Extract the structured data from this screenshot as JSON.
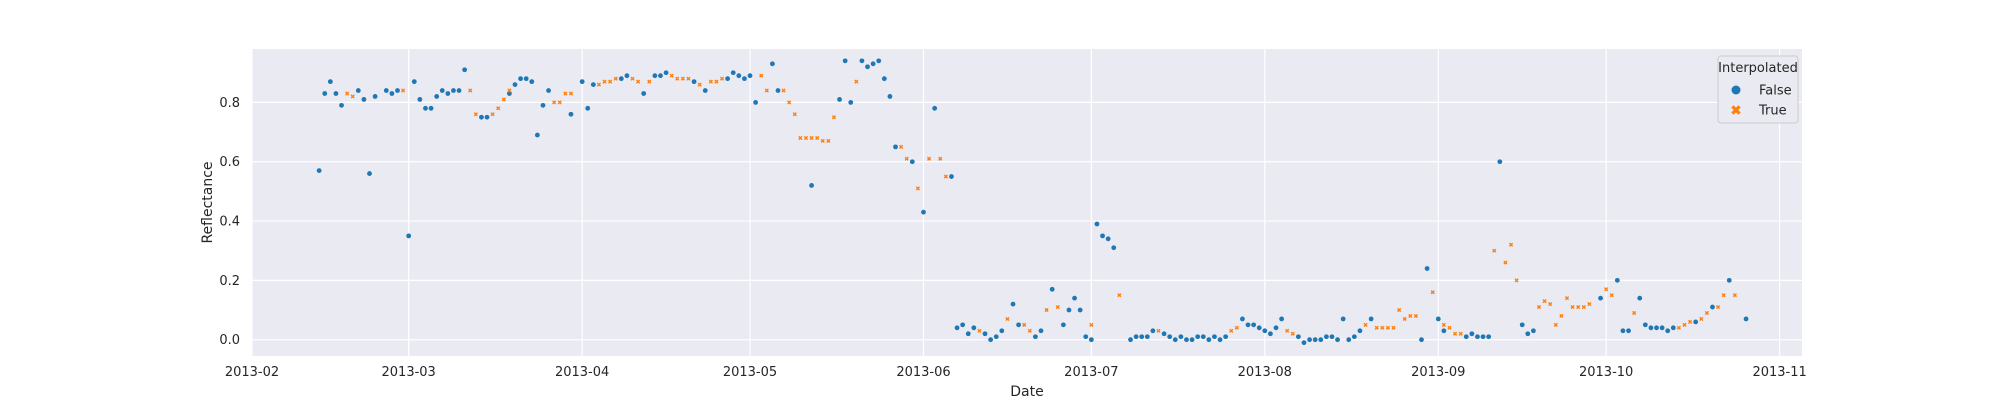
{
  "chart_data": {
    "type": "scatter",
    "xlabel": "Date",
    "ylabel": "Reflectance",
    "xlim": [
      "2013-02-01",
      "2013-11-05"
    ],
    "ylim": [
      -0.055,
      0.98
    ],
    "x_ticks": [
      "2013-02",
      "2013-03",
      "2013-04",
      "2013-05",
      "2013-06",
      "2013-07",
      "2013-08",
      "2013-09",
      "2013-10",
      "2013-11"
    ],
    "x_tick_dates": [
      "2013-02-01",
      "2013-03-01",
      "2013-04-01",
      "2013-05-01",
      "2013-06-01",
      "2013-07-01",
      "2013-08-01",
      "2013-09-01",
      "2013-10-01",
      "2013-11-01"
    ],
    "y_ticks": [
      0.0,
      0.2,
      0.4,
      0.6,
      0.8
    ],
    "y_tick_labels": [
      "0.0",
      "0.2",
      "0.4",
      "0.6",
      "0.8"
    ],
    "grid": true,
    "background": "#eaeaf2",
    "legend": {
      "title": "Interpolated",
      "placement": "top-right",
      "entries": [
        {
          "label": "False",
          "marker": "circle",
          "color": "#1f77b4"
        },
        {
          "label": "True",
          "marker": "x",
          "color": "#ff7f0e"
        }
      ]
    },
    "series": [
      {
        "name": "False",
        "color": "#1f77b4",
        "points": [
          [
            "2013-02-13",
            0.57
          ],
          [
            "2013-02-14",
            0.83
          ],
          [
            "2013-02-15",
            0.87
          ],
          [
            "2013-02-16",
            0.83
          ],
          [
            "2013-02-17",
            0.79
          ],
          [
            "2013-02-20",
            0.84
          ],
          [
            "2013-02-21",
            0.81
          ],
          [
            "2013-02-22",
            0.56
          ],
          [
            "2013-02-23",
            0.82
          ],
          [
            "2013-02-25",
            0.84
          ],
          [
            "2013-02-26",
            0.83
          ],
          [
            "2013-02-27",
            0.84
          ],
          [
            "2013-03-01",
            0.35
          ],
          [
            "2013-03-02",
            0.87
          ],
          [
            "2013-03-03",
            0.81
          ],
          [
            "2013-03-04",
            0.78
          ],
          [
            "2013-03-05",
            0.78
          ],
          [
            "2013-03-06",
            0.82
          ],
          [
            "2013-03-07",
            0.84
          ],
          [
            "2013-03-08",
            0.83
          ],
          [
            "2013-03-09",
            0.84
          ],
          [
            "2013-03-10",
            0.84
          ],
          [
            "2013-03-11",
            0.91
          ],
          [
            "2013-03-14",
            0.75
          ],
          [
            "2013-03-15",
            0.75
          ],
          [
            "2013-03-19",
            0.83
          ],
          [
            "2013-03-20",
            0.86
          ],
          [
            "2013-03-21",
            0.88
          ],
          [
            "2013-03-22",
            0.88
          ],
          [
            "2013-03-23",
            0.87
          ],
          [
            "2013-03-24",
            0.69
          ],
          [
            "2013-03-25",
            0.79
          ],
          [
            "2013-03-26",
            0.84
          ],
          [
            "2013-03-30",
            0.76
          ],
          [
            "2013-04-01",
            0.87
          ],
          [
            "2013-04-02",
            0.78
          ],
          [
            "2013-04-03",
            0.86
          ],
          [
            "2013-04-08",
            0.88
          ],
          [
            "2013-04-09",
            0.89
          ],
          [
            "2013-04-12",
            0.83
          ],
          [
            "2013-04-14",
            0.89
          ],
          [
            "2013-04-15",
            0.89
          ],
          [
            "2013-04-16",
            0.9
          ],
          [
            "2013-04-21",
            0.87
          ],
          [
            "2013-04-23",
            0.84
          ],
          [
            "2013-04-27",
            0.88
          ],
          [
            "2013-04-28",
            0.9
          ],
          [
            "2013-04-29",
            0.89
          ],
          [
            "2013-04-30",
            0.88
          ],
          [
            "2013-05-01",
            0.89
          ],
          [
            "2013-05-02",
            0.8
          ],
          [
            "2013-05-05",
            0.93
          ],
          [
            "2013-05-06",
            0.84
          ],
          [
            "2013-05-12",
            0.52
          ],
          [
            "2013-05-17",
            0.81
          ],
          [
            "2013-05-18",
            0.94
          ],
          [
            "2013-05-19",
            0.8
          ],
          [
            "2013-05-21",
            0.94
          ],
          [
            "2013-05-22",
            0.92
          ],
          [
            "2013-05-23",
            0.93
          ],
          [
            "2013-05-24",
            0.94
          ],
          [
            "2013-05-25",
            0.88
          ],
          [
            "2013-05-26",
            0.82
          ],
          [
            "2013-05-27",
            0.65
          ],
          [
            "2013-05-30",
            0.6
          ],
          [
            "2013-06-01",
            0.43
          ],
          [
            "2013-06-03",
            0.78
          ],
          [
            "2013-06-06",
            0.55
          ],
          [
            "2013-06-07",
            0.04
          ],
          [
            "2013-06-08",
            0.05
          ],
          [
            "2013-06-09",
            0.02
          ],
          [
            "2013-06-10",
            0.04
          ],
          [
            "2013-06-12",
            0.02
          ],
          [
            "2013-06-13",
            0.0
          ],
          [
            "2013-06-14",
            0.01
          ],
          [
            "2013-06-15",
            0.03
          ],
          [
            "2013-06-17",
            0.12
          ],
          [
            "2013-06-18",
            0.05
          ],
          [
            "2013-06-21",
            0.01
          ],
          [
            "2013-06-22",
            0.03
          ],
          [
            "2013-06-24",
            0.17
          ],
          [
            "2013-06-26",
            0.05
          ],
          [
            "2013-06-27",
            0.1
          ],
          [
            "2013-06-28",
            0.14
          ],
          [
            "2013-06-29",
            0.1
          ],
          [
            "2013-06-30",
            0.01
          ],
          [
            "2013-07-01",
            0.0
          ],
          [
            "2013-07-02",
            0.39
          ],
          [
            "2013-07-03",
            0.35
          ],
          [
            "2013-07-04",
            0.34
          ],
          [
            "2013-07-05",
            0.31
          ],
          [
            "2013-07-08",
            0.0
          ],
          [
            "2013-07-09",
            0.01
          ],
          [
            "2013-07-10",
            0.01
          ],
          [
            "2013-07-11",
            0.01
          ],
          [
            "2013-07-12",
            0.03
          ],
          [
            "2013-07-14",
            0.02
          ],
          [
            "2013-07-15",
            0.01
          ],
          [
            "2013-07-16",
            0.0
          ],
          [
            "2013-07-17",
            0.01
          ],
          [
            "2013-07-18",
            0.0
          ],
          [
            "2013-07-19",
            0.0
          ],
          [
            "2013-07-20",
            0.01
          ],
          [
            "2013-07-21",
            0.01
          ],
          [
            "2013-07-22",
            0.0
          ],
          [
            "2013-07-23",
            0.01
          ],
          [
            "2013-07-24",
            0.0
          ],
          [
            "2013-07-25",
            0.01
          ],
          [
            "2013-07-28",
            0.07
          ],
          [
            "2013-07-29",
            0.05
          ],
          [
            "2013-07-30",
            0.05
          ],
          [
            "2013-07-31",
            0.04
          ],
          [
            "2013-08-01",
            0.03
          ],
          [
            "2013-08-02",
            0.02
          ],
          [
            "2013-08-03",
            0.04
          ],
          [
            "2013-08-04",
            0.07
          ],
          [
            "2013-08-07",
            0.01
          ],
          [
            "2013-08-08",
            -0.01
          ],
          [
            "2013-08-09",
            0.0
          ],
          [
            "2013-08-10",
            0.0
          ],
          [
            "2013-08-11",
            0.0
          ],
          [
            "2013-08-12",
            0.01
          ],
          [
            "2013-08-13",
            0.01
          ],
          [
            "2013-08-14",
            0.0
          ],
          [
            "2013-08-15",
            0.07
          ],
          [
            "2013-08-16",
            0.0
          ],
          [
            "2013-08-17",
            0.01
          ],
          [
            "2013-08-18",
            0.03
          ],
          [
            "2013-08-20",
            0.07
          ],
          [
            "2013-08-29",
            0.0
          ],
          [
            "2013-08-30",
            0.24
          ],
          [
            "2013-09-01",
            0.07
          ],
          [
            "2013-09-02",
            0.03
          ],
          [
            "2013-09-06",
            0.01
          ],
          [
            "2013-09-07",
            0.02
          ],
          [
            "2013-09-08",
            0.01
          ],
          [
            "2013-09-09",
            0.01
          ],
          [
            "2013-09-10",
            0.01
          ],
          [
            "2013-09-12",
            0.6
          ],
          [
            "2013-09-16",
            0.05
          ],
          [
            "2013-09-17",
            0.02
          ],
          [
            "2013-09-18",
            0.03
          ],
          [
            "2013-09-30",
            0.14
          ],
          [
            "2013-10-03",
            0.2
          ],
          [
            "2013-10-04",
            0.03
          ],
          [
            "2013-10-05",
            0.03
          ],
          [
            "2013-10-07",
            0.14
          ],
          [
            "2013-10-08",
            0.05
          ],
          [
            "2013-10-09",
            0.04
          ],
          [
            "2013-10-10",
            0.04
          ],
          [
            "2013-10-11",
            0.04
          ],
          [
            "2013-10-12",
            0.03
          ],
          [
            "2013-10-13",
            0.04
          ],
          [
            "2013-10-17",
            0.06
          ],
          [
            "2013-10-20",
            0.11
          ],
          [
            "2013-10-23",
            0.2
          ],
          [
            "2013-10-26",
            0.07
          ]
        ]
      },
      {
        "name": "True",
        "color": "#ff7f0e",
        "points": [
          [
            "2013-02-18",
            0.83
          ],
          [
            "2013-02-19",
            0.82
          ],
          [
            "2013-02-28",
            0.84
          ],
          [
            "2013-03-12",
            0.84
          ],
          [
            "2013-03-13",
            0.76
          ],
          [
            "2013-03-16",
            0.76
          ],
          [
            "2013-03-17",
            0.78
          ],
          [
            "2013-03-18",
            0.81
          ],
          [
            "2013-03-19",
            0.84
          ],
          [
            "2013-03-27",
            0.8
          ],
          [
            "2013-03-28",
            0.8
          ],
          [
            "2013-03-29",
            0.83
          ],
          [
            "2013-03-30",
            0.83
          ],
          [
            "2013-04-04",
            0.86
          ],
          [
            "2013-04-05",
            0.87
          ],
          [
            "2013-04-06",
            0.87
          ],
          [
            "2013-04-07",
            0.88
          ],
          [
            "2013-04-10",
            0.88
          ],
          [
            "2013-04-11",
            0.87
          ],
          [
            "2013-04-13",
            0.87
          ],
          [
            "2013-04-17",
            0.89
          ],
          [
            "2013-04-18",
            0.88
          ],
          [
            "2013-04-19",
            0.88
          ],
          [
            "2013-04-20",
            0.88
          ],
          [
            "2013-04-22",
            0.86
          ],
          [
            "2013-04-24",
            0.87
          ],
          [
            "2013-04-25",
            0.87
          ],
          [
            "2013-04-26",
            0.88
          ],
          [
            "2013-05-03",
            0.89
          ],
          [
            "2013-05-04",
            0.84
          ],
          [
            "2013-05-07",
            0.84
          ],
          [
            "2013-05-08",
            0.8
          ],
          [
            "2013-05-09",
            0.76
          ],
          [
            "2013-05-10",
            0.68
          ],
          [
            "2013-05-11",
            0.68
          ],
          [
            "2013-05-12",
            0.68
          ],
          [
            "2013-05-13",
            0.68
          ],
          [
            "2013-05-14",
            0.67
          ],
          [
            "2013-05-15",
            0.67
          ],
          [
            "2013-05-16",
            0.75
          ],
          [
            "2013-05-20",
            0.87
          ],
          [
            "2013-05-28",
            0.65
          ],
          [
            "2013-05-29",
            0.61
          ],
          [
            "2013-05-31",
            0.51
          ],
          [
            "2013-06-02",
            0.61
          ],
          [
            "2013-06-04",
            0.61
          ],
          [
            "2013-06-05",
            0.55
          ],
          [
            "2013-06-11",
            0.03
          ],
          [
            "2013-06-16",
            0.07
          ],
          [
            "2013-06-19",
            0.05
          ],
          [
            "2013-06-20",
            0.03
          ],
          [
            "2013-06-23",
            0.1
          ],
          [
            "2013-06-25",
            0.11
          ],
          [
            "2013-07-01",
            0.05
          ],
          [
            "2013-07-06",
            0.15
          ],
          [
            "2013-07-13",
            0.03
          ],
          [
            "2013-07-26",
            0.03
          ],
          [
            "2013-07-27",
            0.04
          ],
          [
            "2013-08-05",
            0.03
          ],
          [
            "2013-08-06",
            0.02
          ],
          [
            "2013-08-19",
            0.05
          ],
          [
            "2013-08-21",
            0.04
          ],
          [
            "2013-08-22",
            0.04
          ],
          [
            "2013-08-23",
            0.04
          ],
          [
            "2013-08-24",
            0.04
          ],
          [
            "2013-08-25",
            0.1
          ],
          [
            "2013-08-26",
            0.07
          ],
          [
            "2013-08-27",
            0.08
          ],
          [
            "2013-08-28",
            0.08
          ],
          [
            "2013-08-31",
            0.16
          ],
          [
            "2013-09-02",
            0.05
          ],
          [
            "2013-09-03",
            0.04
          ],
          [
            "2013-09-04",
            0.02
          ],
          [
            "2013-09-05",
            0.02
          ],
          [
            "2013-09-11",
            0.3
          ],
          [
            "2013-09-13",
            0.26
          ],
          [
            "2013-09-14",
            0.32
          ],
          [
            "2013-09-15",
            0.2
          ],
          [
            "2013-09-19",
            0.11
          ],
          [
            "2013-09-20",
            0.13
          ],
          [
            "2013-09-21",
            0.12
          ],
          [
            "2013-09-22",
            0.05
          ],
          [
            "2013-09-23",
            0.08
          ],
          [
            "2013-09-24",
            0.14
          ],
          [
            "2013-09-25",
            0.11
          ],
          [
            "2013-09-26",
            0.11
          ],
          [
            "2013-09-27",
            0.11
          ],
          [
            "2013-09-28",
            0.12
          ],
          [
            "2013-10-01",
            0.17
          ],
          [
            "2013-10-02",
            0.15
          ],
          [
            "2013-10-06",
            0.09
          ],
          [
            "2013-10-14",
            0.04
          ],
          [
            "2013-10-15",
            0.05
          ],
          [
            "2013-10-16",
            0.06
          ],
          [
            "2013-10-18",
            0.07
          ],
          [
            "2013-10-19",
            0.09
          ],
          [
            "2013-10-21",
            0.11
          ],
          [
            "2013-10-22",
            0.15
          ],
          [
            "2013-10-24",
            0.15
          ]
        ]
      }
    ]
  }
}
